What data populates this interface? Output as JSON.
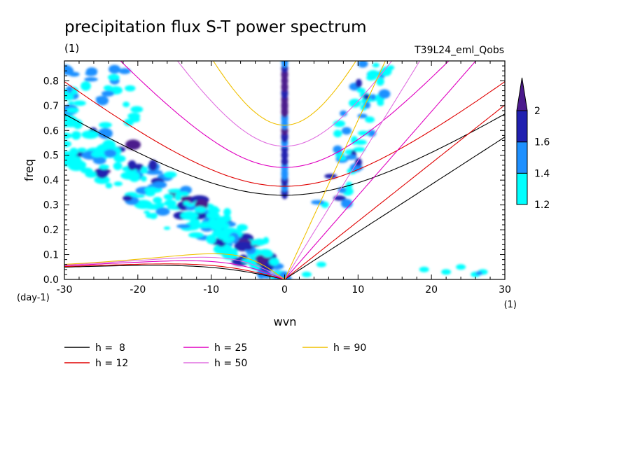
{
  "chart_data": {
    "type": "contour",
    "title": "precipitation flux S-T power spectrum",
    "subtitle_left": "(1)",
    "subtitle_right": "T39L24_eml_Qobs",
    "xlabel": "wvn",
    "ylabel": "freq",
    "x_unit": "(1)",
    "y_unit": "(day-1)",
    "xlim": [
      -30,
      30
    ],
    "ylim": [
      0,
      0.88
    ],
    "x_ticks": [
      -30,
      -20,
      -10,
      0,
      10,
      20,
      30
    ],
    "x_tick_labels": [
      "-30",
      "-20",
      "-10",
      "0",
      "10",
      "20",
      "30"
    ],
    "y_ticks": [
      0,
      0.1,
      0.2,
      0.3,
      0.4,
      0.5,
      0.6,
      0.7,
      0.8
    ],
    "y_tick_labels": [
      "0.0",
      "0.1",
      "0.2",
      "0.3",
      "0.4",
      "0.5",
      "0.6",
      "0.7",
      "0.8"
    ],
    "colorbar": {
      "levels": [
        1.2,
        1.4,
        1.6,
        2
      ],
      "level_labels": [
        "1.2",
        "1.4",
        "1.6",
        "2"
      ],
      "colors": [
        "#00ffff",
        "#1e90ff",
        "#2020b0",
        "#4b1a8c"
      ]
    },
    "dispersion_curves": [
      {
        "name": "h =  8",
        "h": 8,
        "color": "#000000"
      },
      {
        "name": "h = 12",
        "h": 12,
        "color": "#e00000"
      },
      {
        "name": "h = 25",
        "h": 25,
        "color": "#e000c0"
      },
      {
        "name": "h = 50",
        "h": 50,
        "color": "#e070e0"
      },
      {
        "name": "h = 90",
        "h": 90,
        "color": "#f0c000"
      }
    ],
    "features": [
      {
        "name": "westward diagonal band",
        "x": [
          -30,
          0
        ],
        "y": [
          0.62,
          0.0
        ],
        "level": "1.2-2"
      },
      {
        "name": "zero wavenumber column",
        "x": [
          0,
          0
        ],
        "y": [
          0.35,
          0.88
        ],
        "level": "1.4-2"
      },
      {
        "name": "kelvin band",
        "x": [
          6,
          14
        ],
        "y": [
          0.35,
          0.88
        ],
        "level": "1.2-1.6"
      }
    ]
  }
}
